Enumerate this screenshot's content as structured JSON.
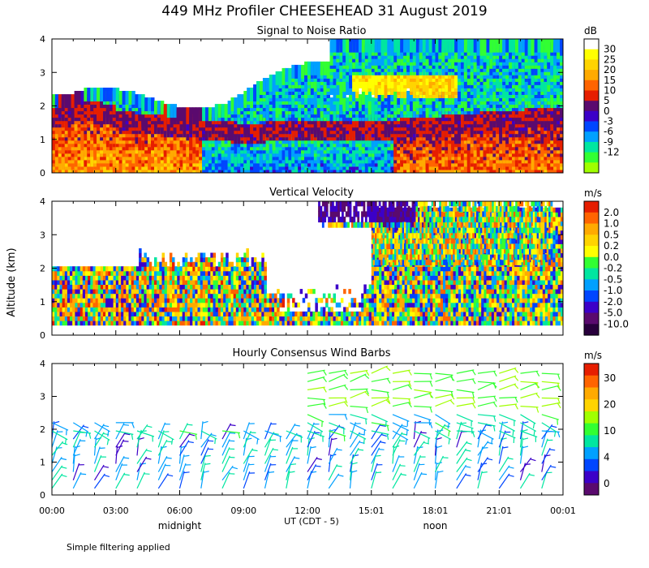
{
  "title": "449 MHz Profiler CHEESEHEAD 31 August 2019",
  "footnote": "Simple filtering applied",
  "chart_data": [
    {
      "type": "heatmap",
      "title": "Signal to Noise Ratio",
      "ylabel": "",
      "ylim": [
        0,
        4
      ],
      "y_ticks": [
        "0",
        "1",
        "2",
        "3",
        "4"
      ],
      "x_ticks": [
        "00:00",
        "03:00",
        "06:00",
        "09:00",
        "12:00",
        "15:01",
        "18:01",
        "21:01",
        "00:01"
      ],
      "xlabel": "UT  (CDT - 5)",
      "x_annotations": [
        "midnight",
        "noon"
      ],
      "colorbar": {
        "unit": "dB",
        "labels": [
          "30",
          "25",
          "20",
          "15",
          "10",
          "5",
          "0",
          "-3",
          "-6",
          "-9",
          "-12"
        ],
        "colors": [
          "#ffffff",
          "#ffff00",
          "#ffd400",
          "#ffaa00",
          "#ff6400",
          "#e61e00",
          "#5a0a6e",
          "#3c00c8",
          "#0046ff",
          "#00a0ff",
          "#00e6a0",
          "#32ff32",
          "#a0ff00"
        ]
      }
    },
    {
      "type": "heatmap",
      "title": "Vertical Velocity",
      "ylabel": "Altitude (km)",
      "ylim": [
        0,
        4
      ],
      "y_ticks": [
        "0",
        "1",
        "2",
        "3",
        "4"
      ],
      "colorbar": {
        "unit": "m/s",
        "labels": [
          "2.0",
          "1.0",
          "0.5",
          "0.2",
          "0.0",
          "-0.2",
          "-0.5",
          "-1.0",
          "-2.0",
          "-5.0",
          "-10.0"
        ],
        "colors": [
          "#e61e00",
          "#ff6400",
          "#ffaa00",
          "#ffd400",
          "#ffff00",
          "#32ff32",
          "#00e6a0",
          "#00a0ff",
          "#0046ff",
          "#3c00c8",
          "#5a0a6e",
          "#28003c"
        ]
      }
    },
    {
      "type": "wind_barbs",
      "title": "Hourly Consensus Wind Barbs",
      "ylim": [
        0,
        4
      ],
      "y_ticks": [
        "0",
        "1",
        "2",
        "3",
        "4"
      ],
      "colorbar": {
        "unit": "m/s",
        "labels": [
          "30",
          "20",
          "10",
          "4",
          "0"
        ],
        "colors": [
          "#e61e00",
          "#ff6400",
          "#ffaa00",
          "#ffd400",
          "#a0ff00",
          "#32ff32",
          "#00e6a0",
          "#00a0ff",
          "#0046ff",
          "#3c00c8",
          "#5a0a6e"
        ]
      }
    }
  ]
}
